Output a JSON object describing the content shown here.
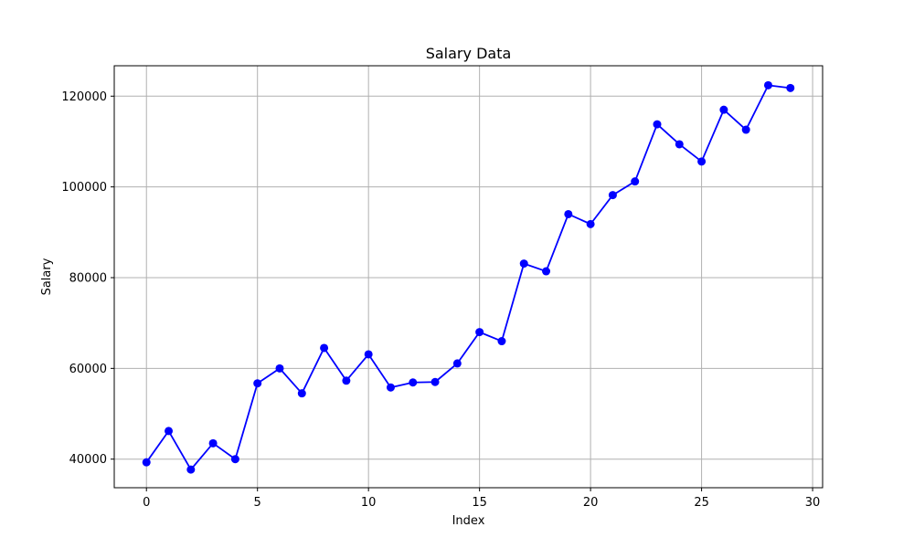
{
  "chart_data": {
    "type": "line",
    "title": "Salary Data",
    "xlabel": "Index",
    "ylabel": "Salary",
    "xlim": [
      -1.45,
      30.45
    ],
    "ylim": [
      33700,
      126700
    ],
    "xticks": [
      0,
      5,
      10,
      15,
      20,
      25,
      30
    ],
    "yticks": [
      40000,
      60000,
      80000,
      100000,
      120000
    ],
    "grid": true,
    "series": [
      {
        "color": "#0000ff",
        "marker": "circle",
        "x": [
          0,
          1,
          2,
          3,
          4,
          5,
          6,
          7,
          8,
          9,
          10,
          11,
          12,
          13,
          14,
          15,
          16,
          17,
          18,
          19,
          20,
          21,
          22,
          23,
          24,
          25,
          26,
          27,
          28,
          29
        ],
        "values": [
          39300,
          46200,
          37700,
          43500,
          40000,
          56700,
          60000,
          54500,
          64500,
          57300,
          63100,
          55800,
          56900,
          57000,
          61100,
          68000,
          66000,
          83100,
          81400,
          94000,
          91800,
          98200,
          101200,
          113800,
          109400,
          105600,
          117000,
          112600,
          122400,
          121800
        ]
      }
    ]
  }
}
